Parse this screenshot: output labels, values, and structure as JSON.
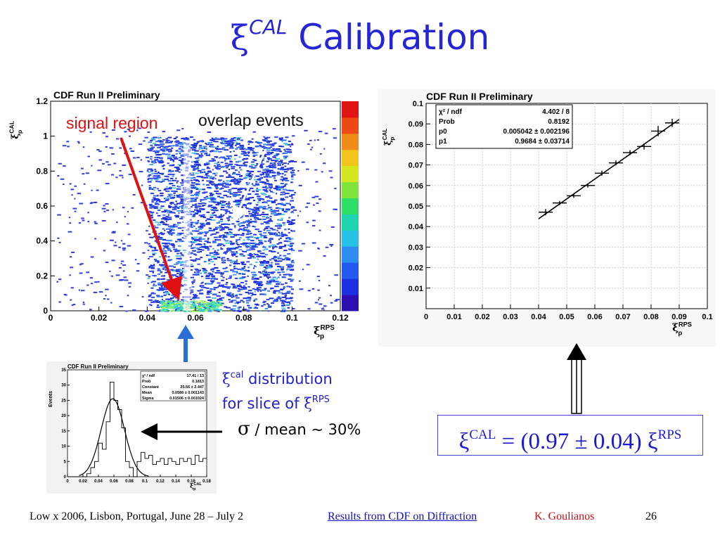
{
  "slide": {
    "title_symbol": "ξ",
    "title_superscript": "CAL",
    "title_word": "Calibration"
  },
  "annotations": {
    "signal_region": "signal region",
    "overlap_events": "overlap events",
    "dist_line1_symbol": "ξ",
    "dist_line1_sup": "cal",
    "dist_line1_text": " distribution",
    "dist_line2_text": "for slice of ",
    "dist_line2_symbol": "ξ",
    "dist_line2_sup": "RPS",
    "sigma_symbol": "σ",
    "sigma_text": " / mean ~ 30%"
  },
  "formula": {
    "lhs_symbol": "ξ",
    "lhs_sup": "CAL",
    "middle": " = (0.97 ± 0.04) ",
    "rhs_symbol": "ξ",
    "rhs_sup": "RPS"
  },
  "footer": {
    "conference": "Low x 2006, Lisbon, Portugal, June 28 – July 2",
    "link": "Results from CDF on Diffraction",
    "author": "K. Goulianos",
    "page": "26"
  },
  "colors": {
    "title": "#2525d8",
    "signal_arrow": "#e01010",
    "overlap_arrow": "#ffffff",
    "pointer_arrow": "#2a6fd6",
    "fit_line": "#000000"
  },
  "chart_data": [
    {
      "type": "heatmap",
      "title": "CDF Run II Preliminary",
      "xlabel": "ξ_p^RPS",
      "ylabel": "ξ_p^CAL",
      "xlim": [
        0,
        0.12
      ],
      "ylim": [
        0,
        1.2
      ],
      "x_ticks": [
        "0",
        "0.02",
        "0.04",
        "0.06",
        "0.08",
        "0.1",
        "0.12"
      ],
      "y_ticks": [
        "0",
        "0.2",
        "0.4",
        "0.6",
        "0.8",
        "1",
        "1.2"
      ],
      "colorbar_ticks": [
        "0",
        "2",
        "4",
        "6",
        "8",
        "10",
        "12"
      ],
      "colorbar_range": [
        0,
        12
      ],
      "signal_region_band_x": [
        0.055,
        0.058
      ],
      "description_dense_region": {
        "x": [
          0.04,
          0.1
        ],
        "y": [
          0,
          1.0
        ]
      },
      "signal_peak": {
        "x": [
          0.045,
          0.07
        ],
        "y": [
          0.0,
          0.06
        ]
      }
    },
    {
      "type": "scatter",
      "title": "CDF Run II Preliminary",
      "xlabel": "ξ_p^RPS",
      "ylabel": "ξ_p^CAL",
      "xlim": [
        0,
        0.1
      ],
      "ylim": [
        0,
        0.1
      ],
      "x_ticks": [
        "0",
        "0.01",
        "0.02",
        "0.03",
        "0.04",
        "0.05",
        "0.06",
        "0.07",
        "0.08",
        "0.09",
        "0.1"
      ],
      "y_ticks": [
        "0.01",
        "0.02",
        "0.03",
        "0.04",
        "0.05",
        "0.06",
        "0.07",
        "0.08",
        "0.09",
        "0.1"
      ],
      "grid": true,
      "stats": [
        {
          "label": "χ² / ndf",
          "value": "4.402 / 8"
        },
        {
          "label": "Prob",
          "value": "0.8192"
        },
        {
          "label": "p0",
          "value": "0.005042 ± 0.002196"
        },
        {
          "label": "p1",
          "value": "0.9684 ± 0.03714"
        }
      ],
      "points": [
        {
          "x": 0.0425,
          "y": 0.047,
          "xerr": 0.0025,
          "yerr": 0.0015
        },
        {
          "x": 0.0475,
          "y": 0.0515,
          "xerr": 0.0025,
          "yerr": 0.001
        },
        {
          "x": 0.0525,
          "y": 0.055,
          "xerr": 0.0025,
          "yerr": 0.001
        },
        {
          "x": 0.0575,
          "y": 0.06,
          "xerr": 0.0025,
          "yerr": 0.001
        },
        {
          "x": 0.0625,
          "y": 0.066,
          "xerr": 0.0025,
          "yerr": 0.0012
        },
        {
          "x": 0.0675,
          "y": 0.071,
          "xerr": 0.0025,
          "yerr": 0.0012
        },
        {
          "x": 0.0725,
          "y": 0.076,
          "xerr": 0.0025,
          "yerr": 0.0012
        },
        {
          "x": 0.0775,
          "y": 0.079,
          "xerr": 0.0025,
          "yerr": 0.0015
        },
        {
          "x": 0.0825,
          "y": 0.0865,
          "xerr": 0.0025,
          "yerr": 0.0025
        },
        {
          "x": 0.0875,
          "y": 0.0905,
          "xerr": 0.0025,
          "yerr": 0.002
        }
      ],
      "fit": {
        "p0": 0.005042,
        "p1": 0.9684,
        "x_range": [
          0.04,
          0.09
        ]
      }
    },
    {
      "type": "bar",
      "title": "CDF Run II Preliminary",
      "xlabel": "ξ_p^CAL",
      "ylabel": "Events",
      "xlim": [
        0,
        0.18
      ],
      "ylim": [
        0,
        35
      ],
      "x_ticks": [
        "0",
        "0.02",
        "0.04",
        "0.06",
        "0.08",
        "0.1",
        "0.12",
        "0.14",
        "0.16",
        "0.18"
      ],
      "y_ticks": [
        "0",
        "5",
        "10",
        "15",
        "20",
        "25",
        "30",
        "35"
      ],
      "bin_width": 0.005,
      "bin_start": 0.0,
      "values": [
        0,
        0,
        0,
        0,
        0,
        1,
        3,
        5,
        11,
        9,
        18,
        31,
        25,
        22,
        16,
        5,
        3,
        0,
        5,
        8,
        6,
        7,
        4,
        5,
        6,
        4,
        6,
        5,
        4,
        6,
        5,
        6,
        4,
        7,
        5,
        6
      ],
      "stats": [
        {
          "label": "χ² / ndf",
          "value": "17.41 / 13"
        },
        {
          "label": "Prob",
          "value": "0.1813"
        },
        {
          "label": "Constant",
          "value": "25.56 ± 2.447"
        },
        {
          "label": "Mean",
          "value": "0.0586 ± 0.001143"
        },
        {
          "label": "Sigma",
          "value": "0.01506 ± 0.001024"
        }
      ],
      "gauss": {
        "constant": 25.56,
        "mean": 0.0586,
        "sigma": 0.01506
      }
    }
  ]
}
